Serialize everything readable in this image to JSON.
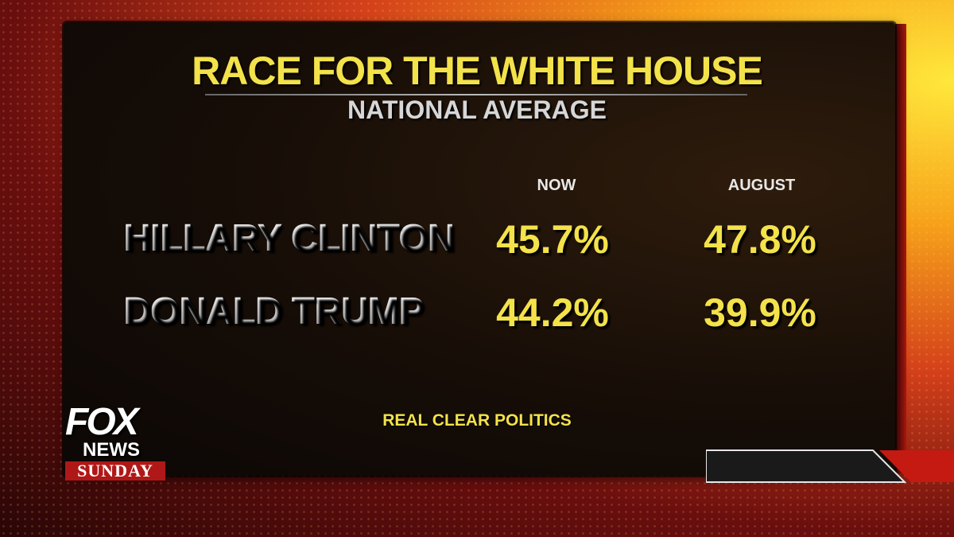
{
  "title": "RACE FOR THE WHITE HOUSE",
  "subtitle": "NATIONAL AVERAGE",
  "columns": [
    "NOW",
    "AUGUST"
  ],
  "rows": [
    {
      "name": "HILLARY CLINTON",
      "now": "45.7%",
      "august": "47.8%"
    },
    {
      "name": "DONALD TRUMP",
      "now": "44.2%",
      "august": "39.9%"
    }
  ],
  "source": "REAL CLEAR POLITICS",
  "logo": {
    "line1": "FOX",
    "line2": "NEWS",
    "line3": "SUNDAY"
  },
  "colors": {
    "accent_yellow": "#f3e24a",
    "brand_red": "#b01818",
    "panel": "#160d07"
  }
}
